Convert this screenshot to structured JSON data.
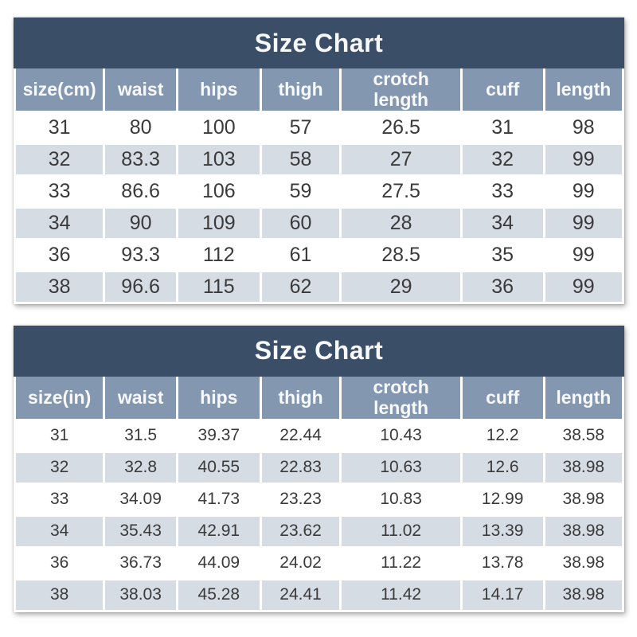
{
  "colors": {
    "title_bg": "#3A4E68",
    "header_bg": "#8497B0",
    "row_alt_bg": "#D6DCE4",
    "row_bg": "#FFFFFF",
    "header_text": "#F7F9FB",
    "cell_text": "#3A3A3A"
  },
  "chart_data": [
    {
      "type": "table",
      "title": "Size Chart",
      "unit": "cm",
      "columns": [
        "size(cm)",
        "waist",
        "hips",
        "thigh",
        "crotch length",
        "cuff",
        "length"
      ],
      "rows": [
        [
          "31",
          "80",
          "100",
          "57",
          "26.5",
          "31",
          "98"
        ],
        [
          "32",
          "83.3",
          "103",
          "58",
          "27",
          "32",
          "99"
        ],
        [
          "33",
          "86.6",
          "106",
          "59",
          "27.5",
          "33",
          "99"
        ],
        [
          "34",
          "90",
          "109",
          "60",
          "28",
          "34",
          "99"
        ],
        [
          "36",
          "93.3",
          "112",
          "61",
          "28.5",
          "35",
          "99"
        ],
        [
          "38",
          "96.6",
          "115",
          "62",
          "29",
          "36",
          "99"
        ]
      ]
    },
    {
      "type": "table",
      "title": "Size Chart",
      "unit": "in",
      "columns": [
        "size(in)",
        "waist",
        "hips",
        "thigh",
        "crotch length",
        "cuff",
        "length"
      ],
      "rows": [
        [
          "31",
          "31.5",
          "39.37",
          "22.44",
          "10.43",
          "12.2",
          "38.58"
        ],
        [
          "32",
          "32.8",
          "40.55",
          "22.83",
          "10.63",
          "12.6",
          "38.98"
        ],
        [
          "33",
          "34.09",
          "41.73",
          "23.23",
          "10.83",
          "12.99",
          "38.98"
        ],
        [
          "34",
          "35.43",
          "42.91",
          "23.62",
          "11.02",
          "13.39",
          "38.98"
        ],
        [
          "36",
          "36.73",
          "44.09",
          "24.02",
          "11.22",
          "13.78",
          "38.98"
        ],
        [
          "38",
          "38.03",
          "45.28",
          "24.41",
          "11.42",
          "14.17",
          "38.98"
        ]
      ]
    }
  ]
}
